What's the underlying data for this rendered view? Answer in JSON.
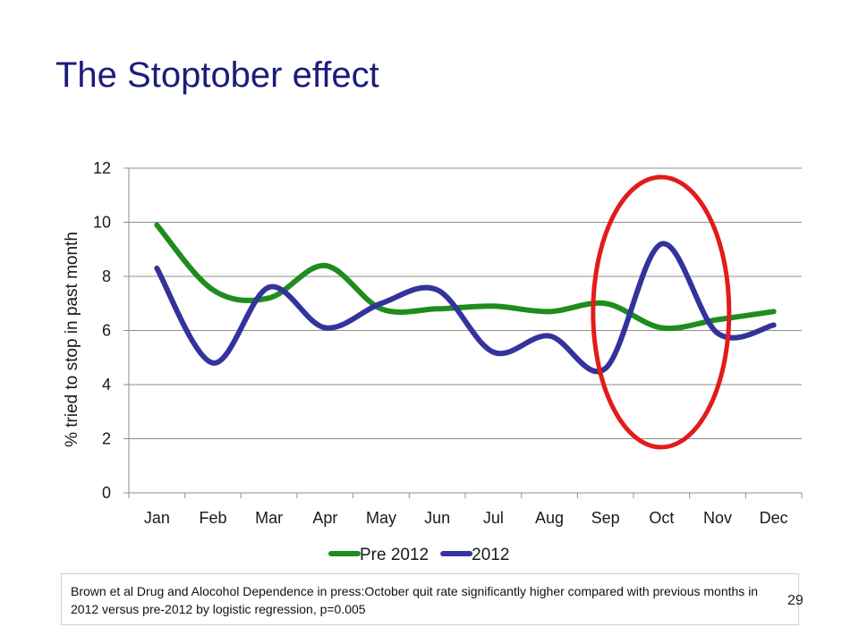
{
  "slide": {
    "title": "The Stoptober effect",
    "citation": "Brown et al Drug and Alocohol Dependence in press:October quit rate significantly higher compared with previous months in 2012 versus pre-2012 by logistic regression, p=0.005",
    "page_number": "29"
  },
  "chart_data": {
    "type": "line",
    "title": "",
    "xlabel": "",
    "ylabel": "% tried to stop in past month",
    "categories": [
      "Jan",
      "Feb",
      "Mar",
      "Apr",
      "May",
      "Jun",
      "Jul",
      "Aug",
      "Sep",
      "Oct",
      "Nov",
      "Dec"
    ],
    "ylim": [
      0,
      12
    ],
    "yticks": [
      0,
      2,
      4,
      6,
      8,
      10,
      12
    ],
    "grid": true,
    "smooth": true,
    "legend_position": "bottom",
    "series": [
      {
        "name": "Pre 2012",
        "color": "#1e8c1e",
        "values": [
          9.9,
          7.5,
          7.2,
          8.4,
          6.8,
          6.8,
          6.9,
          6.7,
          7.0,
          6.1,
          6.4,
          6.7
        ]
      },
      {
        "name": "2012",
        "color": "#33339c",
        "values": [
          8.3,
          4.8,
          7.6,
          6.1,
          7.0,
          7.5,
          5.2,
          5.8,
          4.6,
          9.2,
          5.9,
          6.2
        ]
      }
    ],
    "annotation": {
      "shape": "ellipse",
      "color": "#e31b1b",
      "highlight_category": "Oct"
    }
  }
}
